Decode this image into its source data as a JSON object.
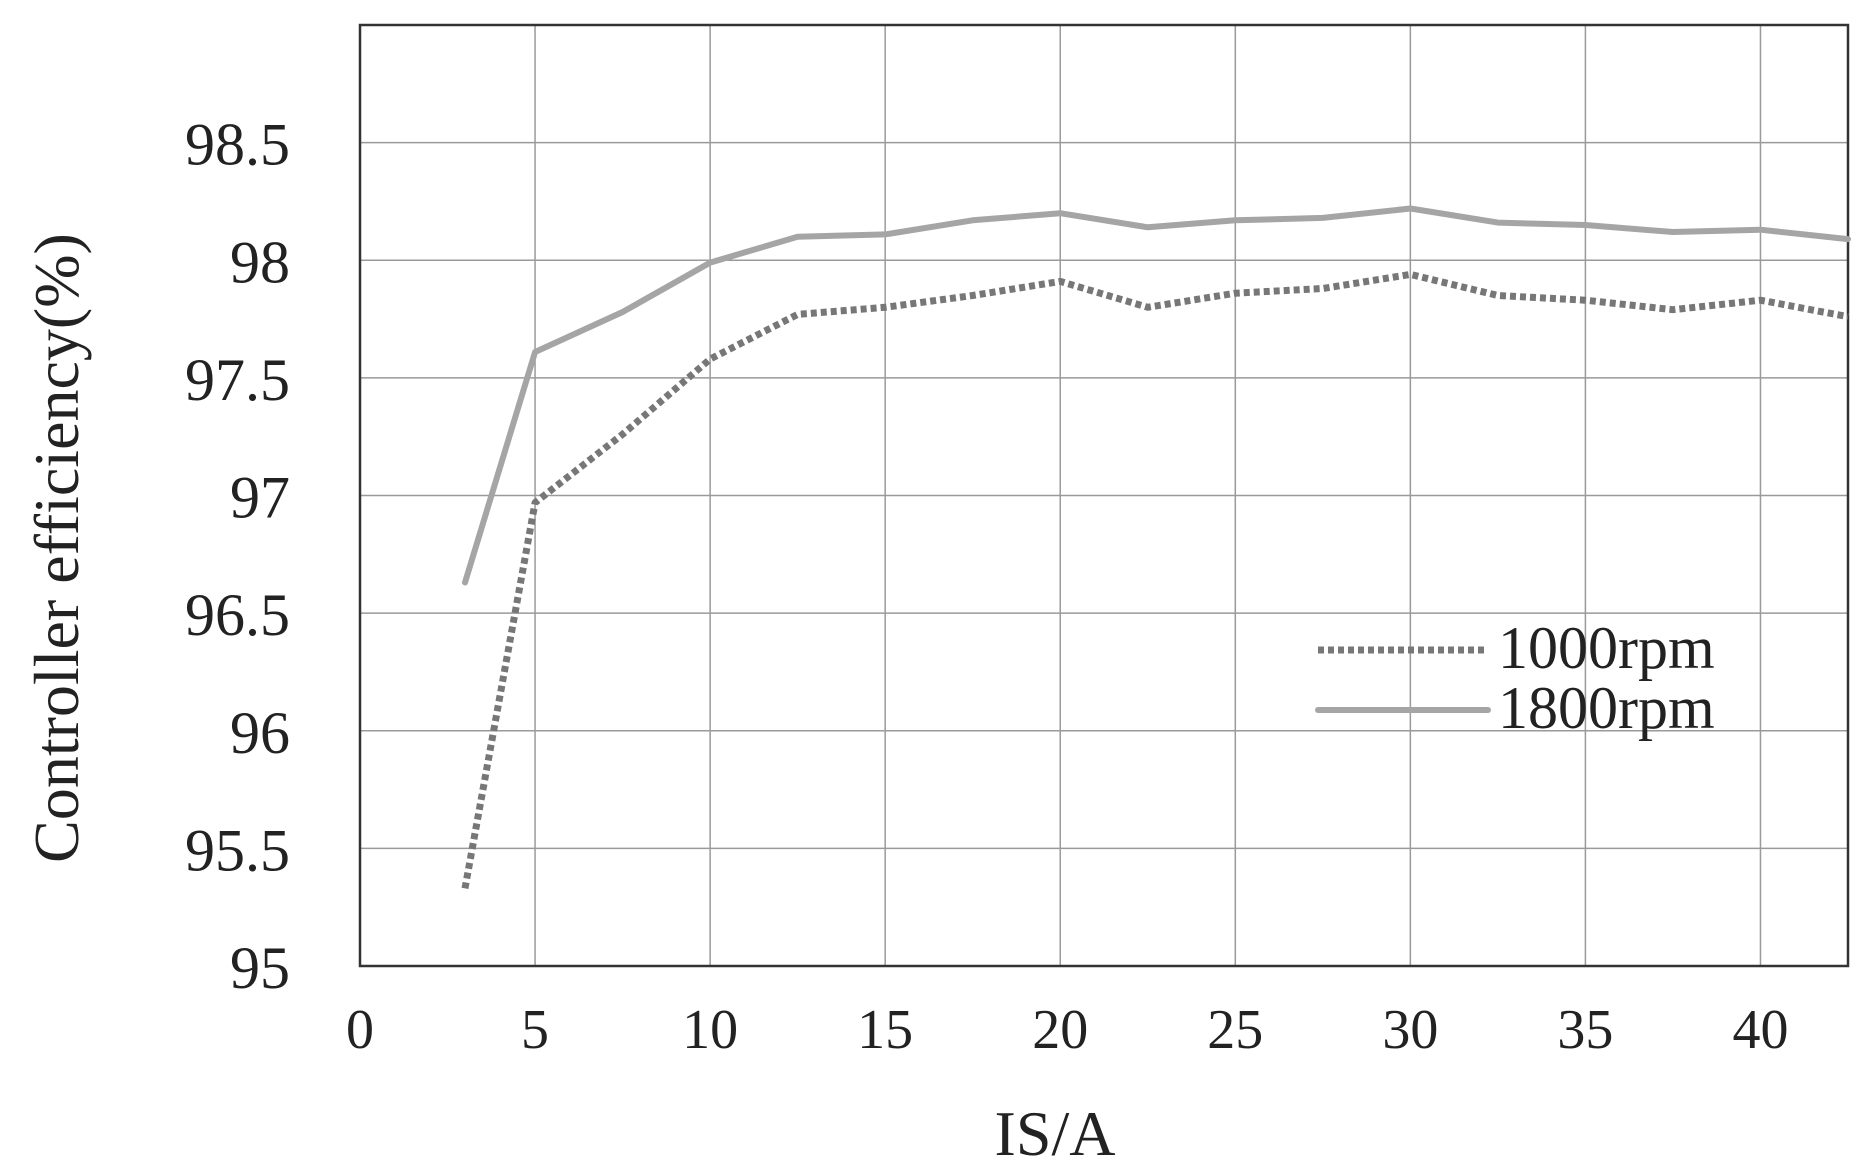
{
  "chart_data": {
    "type": "line",
    "title": "",
    "xlabel": "IS/A",
    "ylabel": "Controller efficiency(%)",
    "xlim": [
      0,
      42.5
    ],
    "ylim": [
      95,
      99
    ],
    "x_ticks": [
      0,
      5,
      10,
      15,
      20,
      25,
      30,
      35,
      40
    ],
    "y_ticks": [
      95,
      95.5,
      96,
      96.5,
      97,
      97.5,
      98,
      98.5
    ],
    "grid": true,
    "legend_position": "right-middle",
    "series": [
      {
        "name": "1000rpm",
        "style": "dotted",
        "color": "#777777",
        "x": [
          3,
          5,
          7.5,
          10,
          12.5,
          15,
          17.5,
          20,
          22.5,
          25,
          27.5,
          30,
          32.5,
          35,
          37.5,
          40,
          42.5
        ],
        "y": [
          95.33,
          96.97,
          97.26,
          97.58,
          97.77,
          97.8,
          97.85,
          97.91,
          97.8,
          97.86,
          97.88,
          97.94,
          97.85,
          97.83,
          97.79,
          97.83,
          97.76
        ]
      },
      {
        "name": "1800rpm",
        "style": "solid",
        "color": "#a5a5a5",
        "x": [
          3,
          5,
          7.5,
          10,
          12.5,
          15,
          17.5,
          20,
          22.5,
          25,
          27.5,
          30,
          32.5,
          35,
          37.5,
          40,
          42.5
        ],
        "y": [
          96.63,
          97.61,
          97.78,
          97.99,
          98.1,
          98.11,
          98.17,
          98.2,
          98.14,
          98.17,
          98.18,
          98.22,
          98.16,
          98.15,
          98.12,
          98.13,
          98.09
        ]
      }
    ]
  }
}
